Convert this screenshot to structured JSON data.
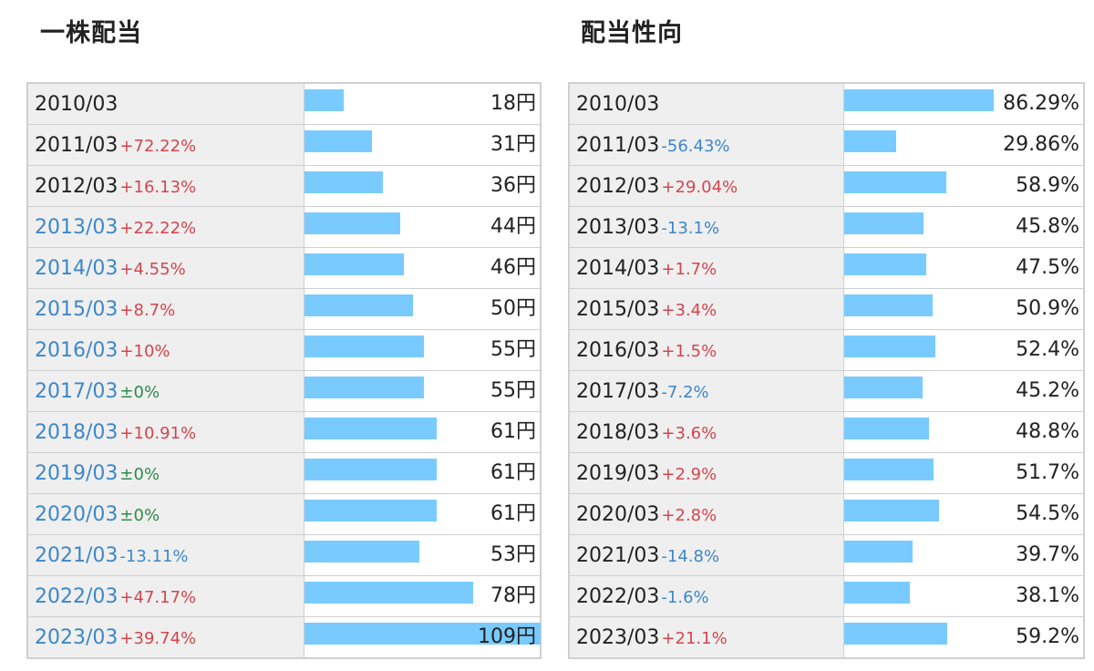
{
  "dividend": {
    "title": "一株配当",
    "unit": "円",
    "rows": [
      {
        "year": "2010/03",
        "change": "",
        "value": 18,
        "highlight": false
      },
      {
        "year": "2011/03",
        "change": "+72.22%",
        "value": 31,
        "highlight": false
      },
      {
        "year": "2012/03",
        "change": "+16.13%",
        "value": 36,
        "highlight": false
      },
      {
        "year": "2013/03",
        "change": "+22.22%",
        "value": 44,
        "highlight": true
      },
      {
        "year": "2014/03",
        "change": "+4.55%",
        "value": 46,
        "highlight": true
      },
      {
        "year": "2015/03",
        "change": "+8.7%",
        "value": 50,
        "highlight": true
      },
      {
        "year": "2016/03",
        "change": "+10%",
        "value": 55,
        "highlight": true
      },
      {
        "year": "2017/03",
        "change": "±0%",
        "value": 55,
        "highlight": true
      },
      {
        "year": "2018/03",
        "change": "+10.91%",
        "value": 61,
        "highlight": true
      },
      {
        "year": "2019/03",
        "change": "±0%",
        "value": 61,
        "highlight": true
      },
      {
        "year": "2020/03",
        "change": "±0%",
        "value": 61,
        "highlight": true
      },
      {
        "year": "2021/03",
        "change": "-13.11%",
        "value": 53,
        "highlight": true
      },
      {
        "year": "2022/03",
        "change": "+47.17%",
        "value": 78,
        "highlight": true
      },
      {
        "year": "2023/03",
        "change": "+39.74%",
        "value": 109,
        "highlight": true
      }
    ]
  },
  "payout": {
    "title": "配当性向",
    "unit": "%",
    "rows": [
      {
        "year": "2010/03",
        "change": "",
        "value": 86.29,
        "highlight": false
      },
      {
        "year": "2011/03",
        "change": "-56.43%",
        "value": 29.86,
        "highlight": false
      },
      {
        "year": "2012/03",
        "change": "+29.04%",
        "value": 58.9,
        "highlight": false
      },
      {
        "year": "2013/03",
        "change": "-13.1%",
        "value": 45.8,
        "highlight": false
      },
      {
        "year": "2014/03",
        "change": "+1.7%",
        "value": 47.5,
        "highlight": false
      },
      {
        "year": "2015/03",
        "change": "+3.4%",
        "value": 50.9,
        "highlight": false
      },
      {
        "year": "2016/03",
        "change": "+1.5%",
        "value": 52.4,
        "highlight": false
      },
      {
        "year": "2017/03",
        "change": "-7.2%",
        "value": 45.2,
        "highlight": false
      },
      {
        "year": "2018/03",
        "change": "+3.6%",
        "value": 48.8,
        "highlight": false
      },
      {
        "year": "2019/03",
        "change": "+2.9%",
        "value": 51.7,
        "highlight": false
      },
      {
        "year": "2020/03",
        "change": "+2.8%",
        "value": 54.5,
        "highlight": false
      },
      {
        "year": "2021/03",
        "change": "-14.8%",
        "value": 39.7,
        "highlight": false
      },
      {
        "year": "2022/03",
        "change": "-1.6%",
        "value": 38.1,
        "highlight": false
      },
      {
        "year": "2023/03",
        "change": "+21.1%",
        "value": 59.2,
        "highlight": false
      }
    ]
  },
  "colors": {
    "bar": "#79cbff",
    "positive": "#d4454d",
    "negative": "#3d87c9",
    "zero": "#2f8a4c",
    "highlight_year": "#3d87c9"
  },
  "chart_data": [
    {
      "type": "bar",
      "title": "一株配当",
      "unit": "円",
      "categories": [
        "2010/03",
        "2011/03",
        "2012/03",
        "2013/03",
        "2014/03",
        "2015/03",
        "2016/03",
        "2017/03",
        "2018/03",
        "2019/03",
        "2020/03",
        "2021/03",
        "2022/03",
        "2023/03"
      ],
      "values": [
        18,
        31,
        36,
        44,
        46,
        50,
        55,
        55,
        61,
        61,
        61,
        53,
        78,
        109
      ]
    },
    {
      "type": "bar",
      "title": "配当性向",
      "unit": "%",
      "categories": [
        "2010/03",
        "2011/03",
        "2012/03",
        "2013/03",
        "2014/03",
        "2015/03",
        "2016/03",
        "2017/03",
        "2018/03",
        "2019/03",
        "2020/03",
        "2021/03",
        "2022/03",
        "2023/03"
      ],
      "values": [
        86.29,
        29.86,
        58.9,
        45.8,
        47.5,
        50.9,
        52.4,
        45.2,
        48.8,
        51.7,
        54.5,
        39.7,
        38.1,
        59.2
      ]
    }
  ]
}
